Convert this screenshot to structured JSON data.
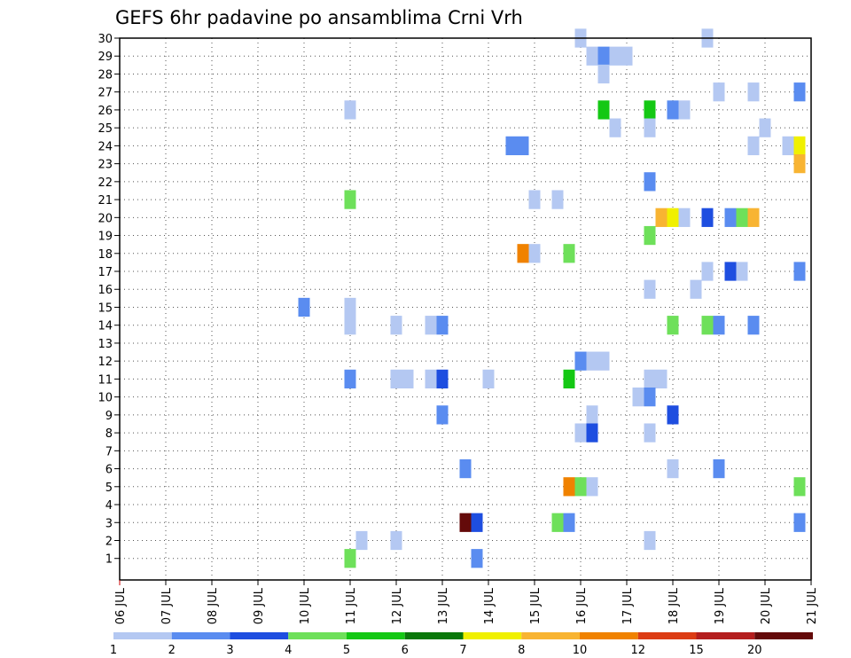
{
  "chart_data": {
    "type": "heatmap",
    "title": "GEFS 6hr padavine po ansamblima Crni Vrh",
    "xlabel": "",
    "ylabel": "",
    "x_ticks": [
      "06 JUL",
      "07 JUL",
      "08 JUL",
      "09 JUL",
      "10 JUL",
      "11 JUL",
      "12 JUL",
      "13 JUL",
      "14 JUL",
      "15 JUL",
      "16 JUL",
      "17 JUL",
      "18 JUL",
      "19 JUL",
      "20 JUL",
      "21 JUL"
    ],
    "x_range_days": [
      6,
      21
    ],
    "y_ticks": [
      "1",
      "2",
      "3",
      "4",
      "5",
      "6",
      "7",
      "8",
      "9",
      "10",
      "11",
      "12",
      "13",
      "14",
      "15",
      "16",
      "17",
      "18",
      "19",
      "20",
      "21",
      "22",
      "23",
      "24",
      "25",
      "26",
      "27",
      "28",
      "29",
      "30"
    ],
    "y_range": [
      0,
      30
    ],
    "grid": true,
    "color_scale": {
      "labels": [
        "1",
        "2",
        "3",
        "4",
        "5",
        "6",
        "7",
        "8",
        "10",
        "12",
        "15",
        "20"
      ],
      "colors": [
        "#b4c8f2",
        "#5a8cf0",
        "#1e4ee0",
        "#6ee05a",
        "#14c814",
        "#0a780a",
        "#f0f000",
        "#f8b432",
        "#f08200",
        "#dc3c14",
        "#b41e1e",
        "#640a0a"
      ]
    },
    "cells": [
      {
        "day": 16.0,
        "m": 30,
        "c": 0
      },
      {
        "day": 18.75,
        "m": 30,
        "c": 0
      },
      {
        "day": 16.25,
        "m": 29,
        "c": 0
      },
      {
        "day": 16.5,
        "m": 29,
        "c": 1
      },
      {
        "day": 16.75,
        "m": 29,
        "c": 0
      },
      {
        "day": 17.0,
        "m": 29,
        "c": 0
      },
      {
        "day": 16.5,
        "m": 28,
        "c": 0
      },
      {
        "day": 19.0,
        "m": 27,
        "c": 0
      },
      {
        "day": 19.75,
        "m": 27,
        "c": 0
      },
      {
        "day": 20.75,
        "m": 27,
        "c": 1
      },
      {
        "day": 11.0,
        "m": 26,
        "c": 0
      },
      {
        "day": 16.5,
        "m": 26,
        "c": 4
      },
      {
        "day": 17.5,
        "m": 26,
        "c": 4
      },
      {
        "day": 18.0,
        "m": 26,
        "c": 1
      },
      {
        "day": 18.25,
        "m": 26,
        "c": 0
      },
      {
        "day": 16.75,
        "m": 25,
        "c": 0
      },
      {
        "day": 17.5,
        "m": 25,
        "c": 0
      },
      {
        "day": 20.0,
        "m": 25,
        "c": 0
      },
      {
        "day": 14.5,
        "m": 24,
        "c": 1
      },
      {
        "day": 14.75,
        "m": 24,
        "c": 1
      },
      {
        "day": 19.75,
        "m": 24,
        "c": 0
      },
      {
        "day": 20.5,
        "m": 24,
        "c": 0
      },
      {
        "day": 20.75,
        "m": 24,
        "c": 6
      },
      {
        "day": 20.75,
        "m": 23,
        "c": 7
      },
      {
        "day": 17.5,
        "m": 22,
        "c": 1
      },
      {
        "day": 11.0,
        "m": 21,
        "c": 3
      },
      {
        "day": 15.0,
        "m": 21,
        "c": 0
      },
      {
        "day": 15.5,
        "m": 21,
        "c": 0
      },
      {
        "day": 17.75,
        "m": 20,
        "c": 7
      },
      {
        "day": 18.0,
        "m": 20,
        "c": 6
      },
      {
        "day": 18.25,
        "m": 20,
        "c": 0
      },
      {
        "day": 18.75,
        "m": 20,
        "c": 2
      },
      {
        "day": 19.25,
        "m": 20,
        "c": 1
      },
      {
        "day": 19.5,
        "m": 20,
        "c": 3
      },
      {
        "day": 19.75,
        "m": 20,
        "c": 7
      },
      {
        "day": 17.5,
        "m": 19,
        "c": 3
      },
      {
        "day": 14.75,
        "m": 18,
        "c": 8
      },
      {
        "day": 15.0,
        "m": 18,
        "c": 0
      },
      {
        "day": 15.75,
        "m": 18,
        "c": 3
      },
      {
        "day": 18.75,
        "m": 17,
        "c": 0
      },
      {
        "day": 19.25,
        "m": 17,
        "c": 2
      },
      {
        "day": 19.5,
        "m": 17,
        "c": 0
      },
      {
        "day": 20.75,
        "m": 17,
        "c": 1
      },
      {
        "day": 17.5,
        "m": 16,
        "c": 0
      },
      {
        "day": 18.5,
        "m": 16,
        "c": 0
      },
      {
        "day": 10.0,
        "m": 15,
        "c": 1
      },
      {
        "day": 11.0,
        "m": 15,
        "c": 0
      },
      {
        "day": 11.0,
        "m": 14,
        "c": 0
      },
      {
        "day": 12.0,
        "m": 14,
        "c": 0
      },
      {
        "day": 12.75,
        "m": 14,
        "c": 0
      },
      {
        "day": 13.0,
        "m": 14,
        "c": 1
      },
      {
        "day": 18.0,
        "m": 14,
        "c": 3
      },
      {
        "day": 18.75,
        "m": 14,
        "c": 3
      },
      {
        "day": 19.0,
        "m": 14,
        "c": 1
      },
      {
        "day": 19.75,
        "m": 14,
        "c": 1
      },
      {
        "day": 16.0,
        "m": 12,
        "c": 1
      },
      {
        "day": 16.25,
        "m": 12,
        "c": 0
      },
      {
        "day": 16.5,
        "m": 12,
        "c": 0
      },
      {
        "day": 11.0,
        "m": 11,
        "c": 1
      },
      {
        "day": 12.0,
        "m": 11,
        "c": 0
      },
      {
        "day": 12.25,
        "m": 11,
        "c": 0
      },
      {
        "day": 12.75,
        "m": 11,
        "c": 0
      },
      {
        "day": 13.0,
        "m": 11,
        "c": 2
      },
      {
        "day": 14.0,
        "m": 11,
        "c": 0
      },
      {
        "day": 15.75,
        "m": 11,
        "c": 4
      },
      {
        "day": 17.5,
        "m": 11,
        "c": 0
      },
      {
        "day": 17.75,
        "m": 11,
        "c": 0
      },
      {
        "day": 17.25,
        "m": 10,
        "c": 0
      },
      {
        "day": 17.5,
        "m": 10,
        "c": 1
      },
      {
        "day": 13.0,
        "m": 9,
        "c": 1
      },
      {
        "day": 16.25,
        "m": 9,
        "c": 0
      },
      {
        "day": 18.0,
        "m": 9,
        "c": 2
      },
      {
        "day": 16.0,
        "m": 8,
        "c": 0
      },
      {
        "day": 16.25,
        "m": 8,
        "c": 2
      },
      {
        "day": 17.5,
        "m": 8,
        "c": 0
      },
      {
        "day": 13.5,
        "m": 6,
        "c": 1
      },
      {
        "day": 18.0,
        "m": 6,
        "c": 0
      },
      {
        "day": 19.0,
        "m": 6,
        "c": 1
      },
      {
        "day": 15.75,
        "m": 5,
        "c": 8
      },
      {
        "day": 16.0,
        "m": 5,
        "c": 3
      },
      {
        "day": 16.25,
        "m": 5,
        "c": 0
      },
      {
        "day": 20.75,
        "m": 5,
        "c": 3
      },
      {
        "day": 13.5,
        "m": 3,
        "c": 11
      },
      {
        "day": 13.75,
        "m": 3,
        "c": 2
      },
      {
        "day": 15.5,
        "m": 3,
        "c": 3
      },
      {
        "day": 15.75,
        "m": 3,
        "c": 1
      },
      {
        "day": 20.75,
        "m": 3,
        "c": 1
      },
      {
        "day": 11.25,
        "m": 2,
        "c": 0
      },
      {
        "day": 12.0,
        "m": 2,
        "c": 0
      },
      {
        "day": 17.5,
        "m": 2,
        "c": 0
      },
      {
        "day": 11.0,
        "m": 1,
        "c": 3
      },
      {
        "day": 13.75,
        "m": 1,
        "c": 1
      }
    ]
  }
}
